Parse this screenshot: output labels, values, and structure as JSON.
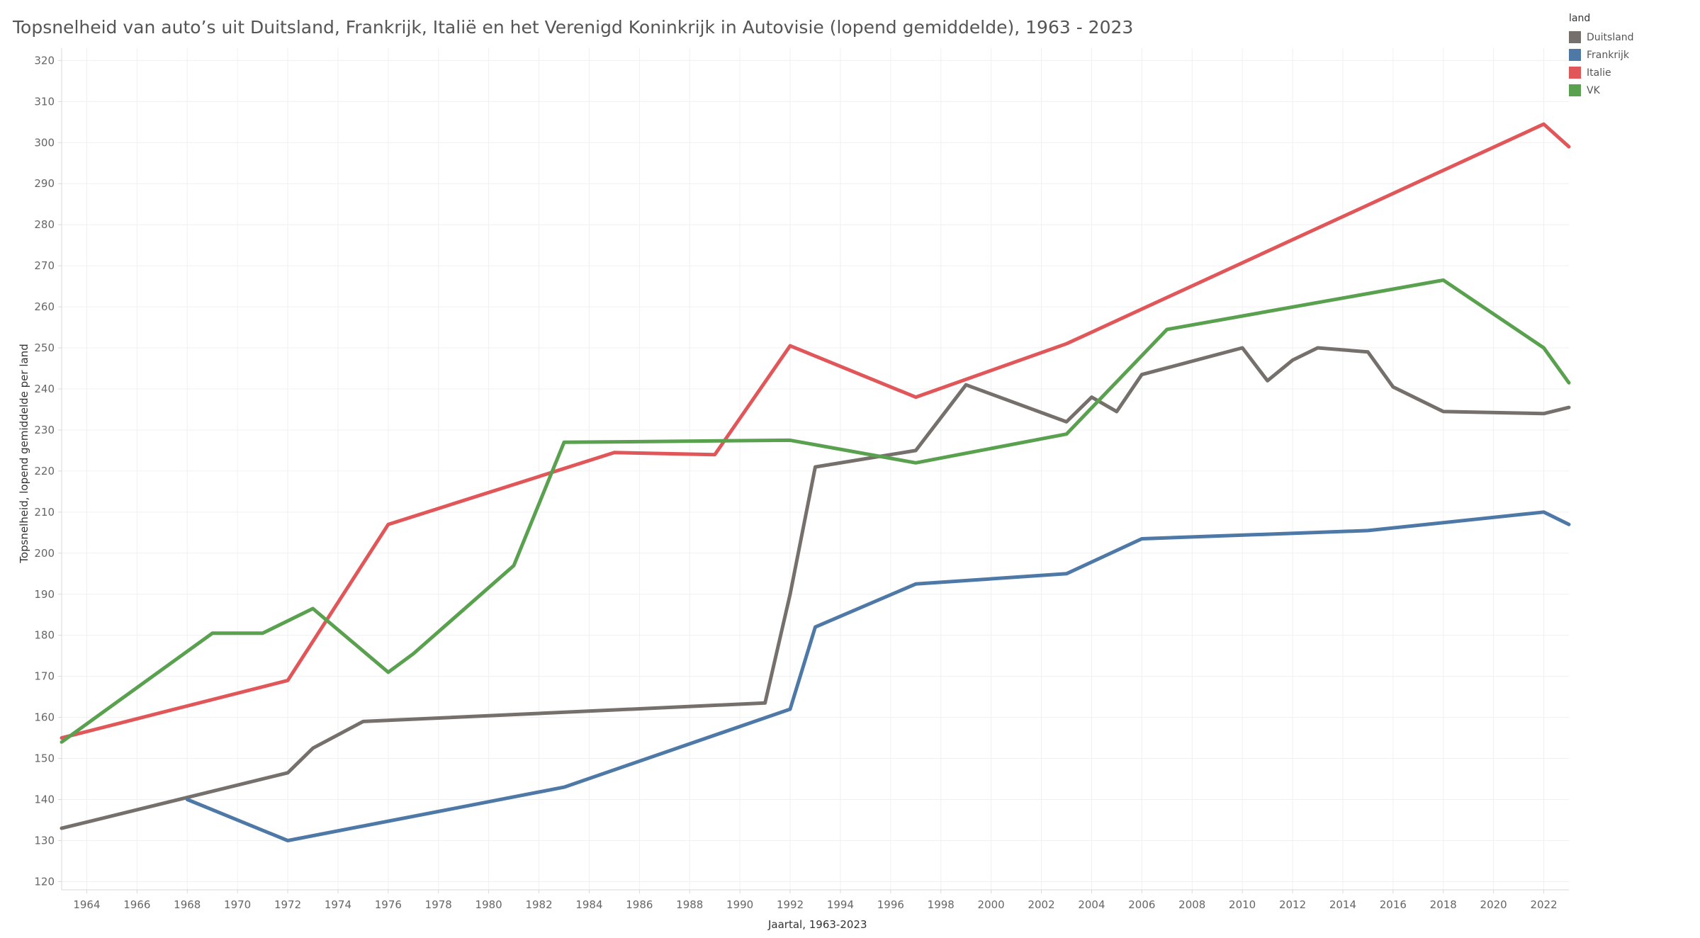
{
  "chart_data": {
    "type": "line",
    "title": "Topsnelheid van auto’s uit Duitsland, Frankrijk, Italië en het Verenigd Koninkrijk in Autovisie (lopend gemiddelde), 1963 - 2023",
    "xlabel": "Jaartal, 1963-2023",
    "ylabel": "Topsnelheid, lopend gemiddelde per land",
    "xlim": [
      1963,
      2023
    ],
    "ylim": [
      118,
      323
    ],
    "x_ticks": [
      "1964",
      "1966",
      "1968",
      "1970",
      "1972",
      "1974",
      "1976",
      "1978",
      "1980",
      "1982",
      "1984",
      "1986",
      "1988",
      "1990",
      "1992",
      "1994",
      "1996",
      "1998",
      "2000",
      "2002",
      "2004",
      "2006",
      "2008",
      "2010",
      "2012",
      "2014",
      "2016",
      "2018",
      "2020",
      "2022"
    ],
    "y_ticks": [
      "120",
      "130",
      "140",
      "150",
      "160",
      "170",
      "180",
      "190",
      "200",
      "210",
      "220",
      "230",
      "240",
      "250",
      "260",
      "270",
      "280",
      "290",
      "300",
      "310",
      "320"
    ],
    "grid": true,
    "legend": {
      "title": "land",
      "position": "top-right",
      "entries": [
        "Duitsland",
        "Frankrijk",
        "Italie",
        "VK"
      ]
    },
    "series": [
      {
        "name": "Duitsland",
        "color": "#76706c",
        "points": [
          [
            1963,
            133
          ],
          [
            1968,
            140.5
          ],
          [
            1972,
            146.5
          ],
          [
            1973,
            152.5
          ],
          [
            1975,
            159
          ],
          [
            1991,
            163.5
          ],
          [
            1992,
            190
          ],
          [
            1993,
            221
          ],
          [
            1997,
            225
          ],
          [
            1999,
            241
          ],
          [
            2003,
            232
          ],
          [
            2004,
            238
          ],
          [
            2005,
            234.5
          ],
          [
            2006,
            243.5
          ],
          [
            2010,
            250
          ],
          [
            2011,
            242
          ],
          [
            2012,
            247
          ],
          [
            2013,
            250
          ],
          [
            2015,
            249
          ],
          [
            2016,
            240.5
          ],
          [
            2018,
            234.5
          ],
          [
            2022,
            234
          ],
          [
            2023,
            235.5
          ]
        ]
      },
      {
        "name": "Frankrijk",
        "color": "#4e79a7",
        "points": [
          [
            1968,
            140
          ],
          [
            1972,
            130
          ],
          [
            1983,
            143
          ],
          [
            1992,
            162
          ],
          [
            1993,
            182
          ],
          [
            1997,
            192.5
          ],
          [
            2003,
            195
          ],
          [
            2006,
            203.5
          ],
          [
            2015,
            205.5
          ],
          [
            2022,
            210
          ],
          [
            2023,
            207
          ]
        ]
      },
      {
        "name": "Italie",
        "color": "#e15759",
        "points": [
          [
            1963,
            155
          ],
          [
            1972,
            169
          ],
          [
            1976,
            207
          ],
          [
            1985,
            224.5
          ],
          [
            1989,
            224
          ],
          [
            1992,
            250.5
          ],
          [
            1997,
            238
          ],
          [
            2003,
            251
          ],
          [
            2022,
            304.5
          ],
          [
            2023,
            299
          ]
        ]
      },
      {
        "name": "VK",
        "color": "#59a14f",
        "points": [
          [
            1963,
            154
          ],
          [
            1969,
            180.5
          ],
          [
            1971,
            180.5
          ],
          [
            1973,
            186.5
          ],
          [
            1976,
            171
          ],
          [
            1977,
            175.5
          ],
          [
            1981,
            197
          ],
          [
            1983,
            227
          ],
          [
            1992,
            227.5
          ],
          [
            1997,
            222
          ],
          [
            2003,
            229
          ],
          [
            2007,
            254.5
          ],
          [
            2018,
            266.5
          ],
          [
            2022,
            250
          ],
          [
            2023,
            241.5
          ]
        ]
      }
    ]
  }
}
